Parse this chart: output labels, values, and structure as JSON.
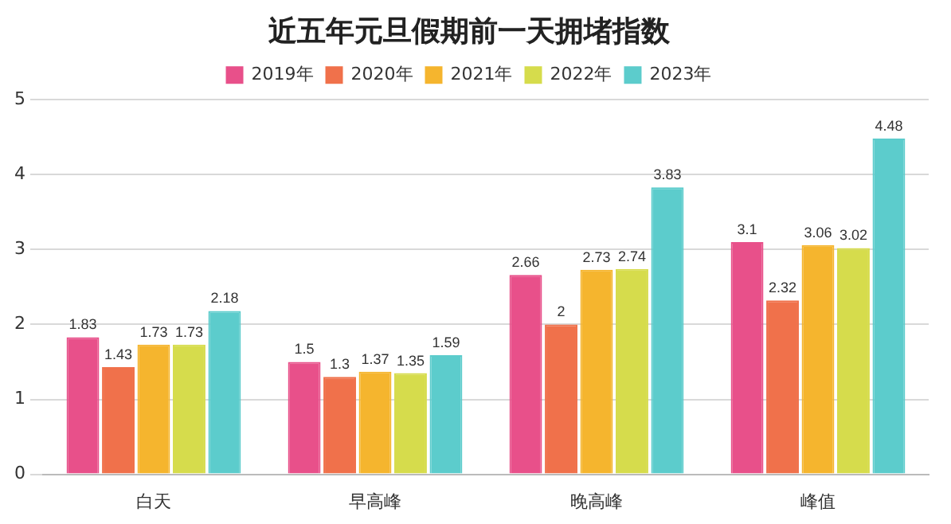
{
  "chart_data": {
    "type": "bar",
    "title": "近五年元旦假期前一天拥堵指数",
    "categories": [
      "白天",
      "早高峰",
      "晚高峰",
      "峰值"
    ],
    "series": [
      {
        "name": "2019年",
        "color": "#e8508a",
        "values": [
          1.83,
          1.5,
          2.66,
          3.1
        ]
      },
      {
        "name": "2020年",
        "color": "#f0714b",
        "values": [
          1.43,
          1.3,
          2,
          2.32
        ]
      },
      {
        "name": "2021年",
        "color": "#f5b52e",
        "values": [
          1.73,
          1.37,
          2.73,
          3.06
        ]
      },
      {
        "name": "2022年",
        "color": "#d6dc4c",
        "values": [
          1.73,
          1.35,
          2.74,
          3.02
        ]
      },
      {
        "name": "2023年",
        "color": "#5ccccc",
        "values": [
          2.18,
          1.59,
          3.83,
          4.48
        ]
      }
    ],
    "ylim": [
      0,
      5
    ],
    "yticks": [
      0,
      1,
      2,
      3,
      4,
      5
    ],
    "grid": "y",
    "legend": "top",
    "data_labels": true
  }
}
